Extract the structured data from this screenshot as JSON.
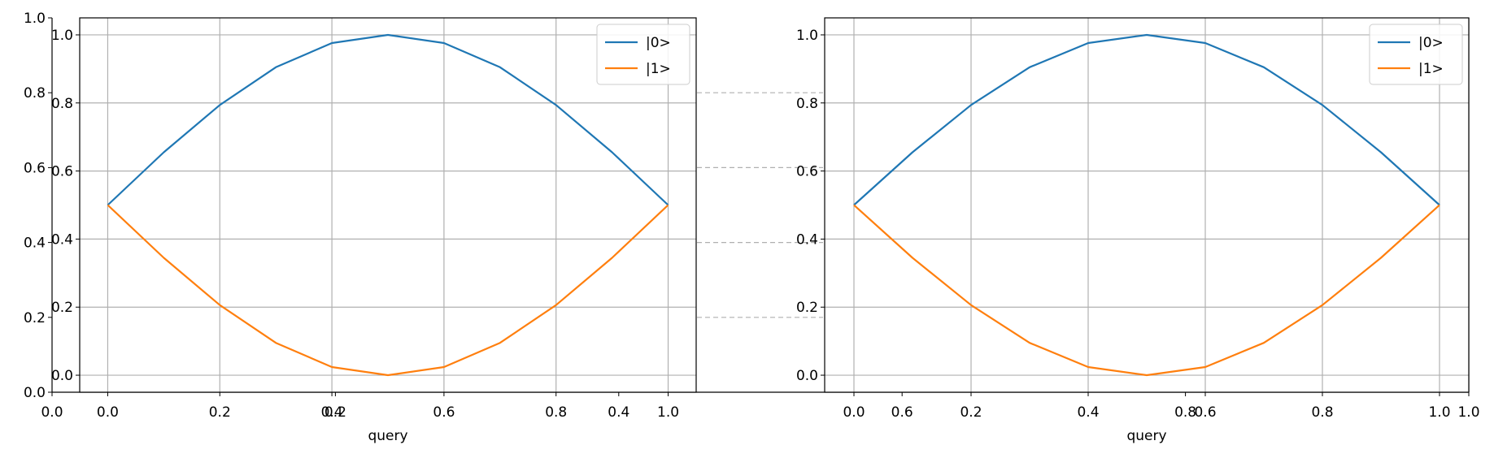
{
  "chart_data": [
    {
      "type": "line",
      "title": "",
      "xlabel": "query",
      "ylabel": "",
      "xlim": [
        0.0,
        1.0
      ],
      "ylim": [
        -0.05,
        1.05
      ],
      "x": [
        0.0,
        0.1,
        0.2,
        0.3,
        0.4,
        0.5,
        0.6,
        0.7,
        0.8,
        0.9,
        1.0
      ],
      "xticks": [
        "0.0",
        "0.2",
        "0.4",
        "0.6",
        "0.8",
        "1.0"
      ],
      "yticks": [
        "0.0",
        "0.2",
        "0.4",
        "0.6",
        "0.8",
        "1.0"
      ],
      "grid": true,
      "legend": "top-right",
      "series": [
        {
          "name": "|0>",
          "color": "#1f77b4",
          "values": [
            0.5,
            0.655,
            0.794,
            0.905,
            0.976,
            1.0,
            0.976,
            0.905,
            0.794,
            0.655,
            0.5
          ]
        },
        {
          "name": "|1>",
          "color": "#ff7f0e",
          "values": [
            0.5,
            0.345,
            0.206,
            0.095,
            0.024,
            0.0,
            0.024,
            0.095,
            0.206,
            0.345,
            0.5
          ]
        }
      ]
    },
    {
      "type": "line",
      "title": "",
      "xlabel": "query",
      "ylabel": "",
      "xlim": [
        0.0,
        1.0
      ],
      "ylim": [
        -0.05,
        1.05
      ],
      "x": [
        0.0,
        0.1,
        0.2,
        0.3,
        0.4,
        0.5,
        0.6,
        0.7,
        0.8,
        0.9,
        1.0
      ],
      "xticks": [
        "0.0",
        "0.2",
        "0.4",
        "0.6",
        "0.8",
        "1.0"
      ],
      "yticks": [
        "0.0",
        "0.2",
        "0.4",
        "0.6",
        "0.8",
        "1.0"
      ],
      "grid": true,
      "legend": "top-right",
      "series": [
        {
          "name": "|0>",
          "color": "#1f77b4",
          "values": [
            0.5,
            0.655,
            0.794,
            0.905,
            0.976,
            1.0,
            0.976,
            0.905,
            0.794,
            0.655,
            0.5
          ]
        },
        {
          "name": "|1>",
          "color": "#ff7f0e",
          "values": [
            0.5,
            0.345,
            0.206,
            0.095,
            0.024,
            0.0,
            0.024,
            0.095,
            0.206,
            0.345,
            0.5
          ]
        }
      ]
    },
    {
      "type": "line",
      "title": "",
      "xlabel": "",
      "ylabel": "",
      "xlim": [
        0.0,
        1.0
      ],
      "ylim": [
        0.0,
        1.0
      ],
      "xticks": [
        "0.0",
        "0.2",
        "0.4",
        "0.6",
        "0.8",
        "1.0"
      ],
      "yticks": [
        "0.0",
        "0.2",
        "0.4",
        "0.6",
        "0.8",
        "1.0"
      ],
      "grid": false,
      "series": []
    }
  ]
}
